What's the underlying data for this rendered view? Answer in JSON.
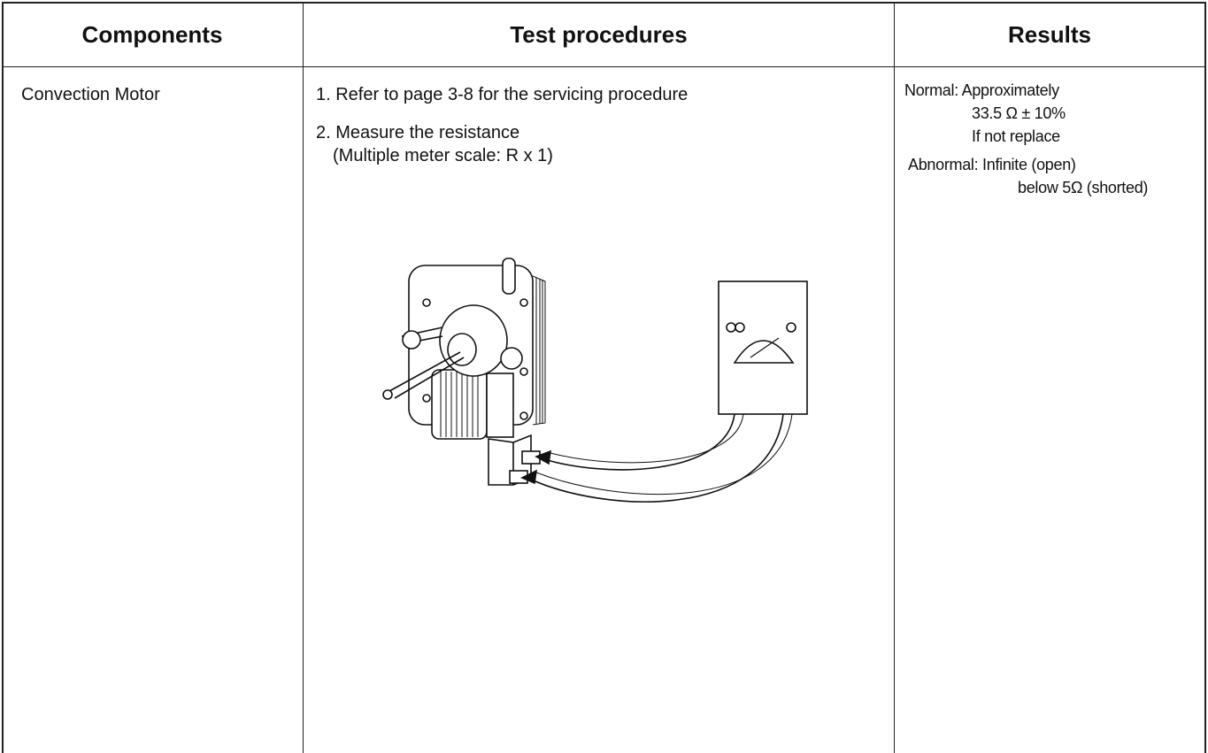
{
  "table": {
    "headers": [
      "Components",
      "Test procedures",
      "Results"
    ],
    "rows": [
      {
        "component": "Convection Motor",
        "procedures": [
          "1. Refer to page 3-8 for the servicing procedure",
          "2. Measure the resistance",
          "(Multiple meter scale: R x 1)"
        ],
        "results": [
          "Normal: Approximately",
          "33.5 Ω ± 10%",
          "If not replace",
          "Abnormal: Infinite (open)",
          "below 5Ω (shorted)"
        ]
      }
    ]
  }
}
